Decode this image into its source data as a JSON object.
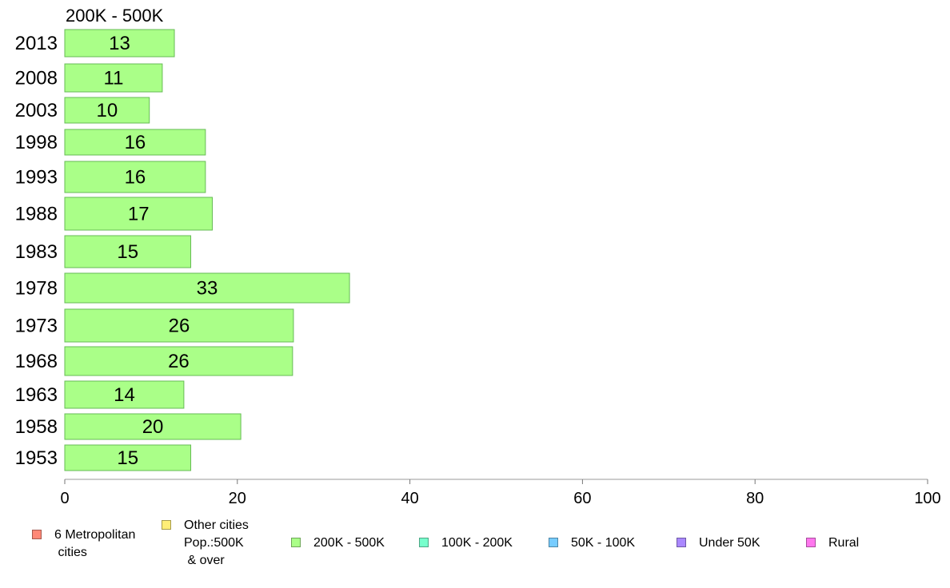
{
  "chart_data": {
    "type": "bar",
    "orientation": "horizontal",
    "title": "200K - 500K",
    "categories": [
      "2013",
      "2008",
      "2003",
      "1998",
      "1993",
      "1988",
      "1983",
      "1978",
      "1973",
      "1968",
      "1963",
      "1958",
      "1953"
    ],
    "values": [
      13,
      11,
      10,
      16,
      16,
      17,
      15,
      33,
      26,
      26,
      14,
      20,
      15
    ],
    "bar_values": [
      12.7,
      11.3,
      9.8,
      16.3,
      16.3,
      17.1,
      14.6,
      33.0,
      26.5,
      26.4,
      13.8,
      20.4,
      14.6
    ],
    "xlim": [
      0,
      100
    ],
    "xticks": [
      0,
      20,
      40,
      60,
      80,
      100
    ],
    "xlabel": "",
    "ylabel": "",
    "grid": false,
    "legend_position": "bottom",
    "bar_color": "#aaff88",
    "bar_edge_color": "#66bb55",
    "legend": [
      {
        "label": "6 Metropolitan\n cities",
        "color": "#ff8877"
      },
      {
        "label": "Other cities\nPop.:500K\n & over",
        "color": "#ffee77"
      },
      {
        "label": "200K - 500K",
        "color": "#aaff88"
      },
      {
        "label": "100K - 200K",
        "color": "#77ffcc"
      },
      {
        "label": "50K - 100K",
        "color": "#77ccff"
      },
      {
        "label": "Under 50K",
        "color": "#aa88ff"
      },
      {
        "label": "Rural",
        "color": "#ff77ee"
      }
    ]
  }
}
